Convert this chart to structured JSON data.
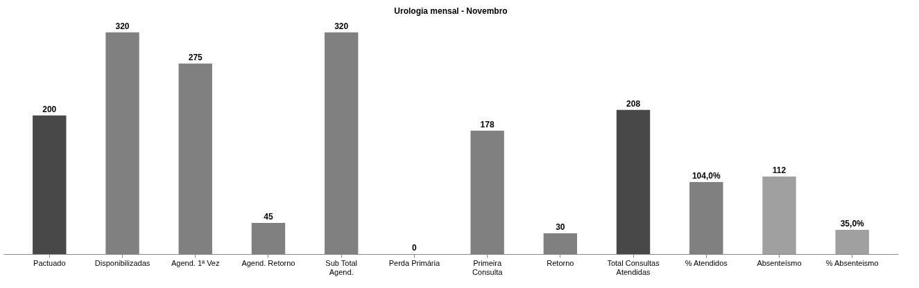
{
  "chart_data": {
    "type": "bar",
    "title": "Urologia mensal  - Novembro",
    "categories": [
      "Pactuado",
      "Disponibilizadas",
      "Agend. 1ª Vez",
      "Agend. Retorno",
      "Sub Total Agend.",
      "Perda Primária",
      "Primeira Consulta",
      "Retorno",
      "Total Consultas Atendidas",
      "% Atendidos",
      "Absenteísmo",
      "% Absenteismo"
    ],
    "values": [
      200,
      320,
      275,
      45,
      320,
      0,
      178,
      30,
      208,
      104,
      112,
      35
    ],
    "value_labels": [
      "200",
      "320",
      "275",
      "45",
      "320",
      "0",
      "178",
      "30",
      "208",
      "104,0%",
      "112",
      "35,0%"
    ],
    "colors": [
      "#484848",
      "#808080",
      "#808080",
      "#808080",
      "#808080",
      "#808080",
      "#808080",
      "#808080",
      "#484848",
      "#808080",
      "#a0a0a0",
      "#a0a0a0"
    ]
  }
}
